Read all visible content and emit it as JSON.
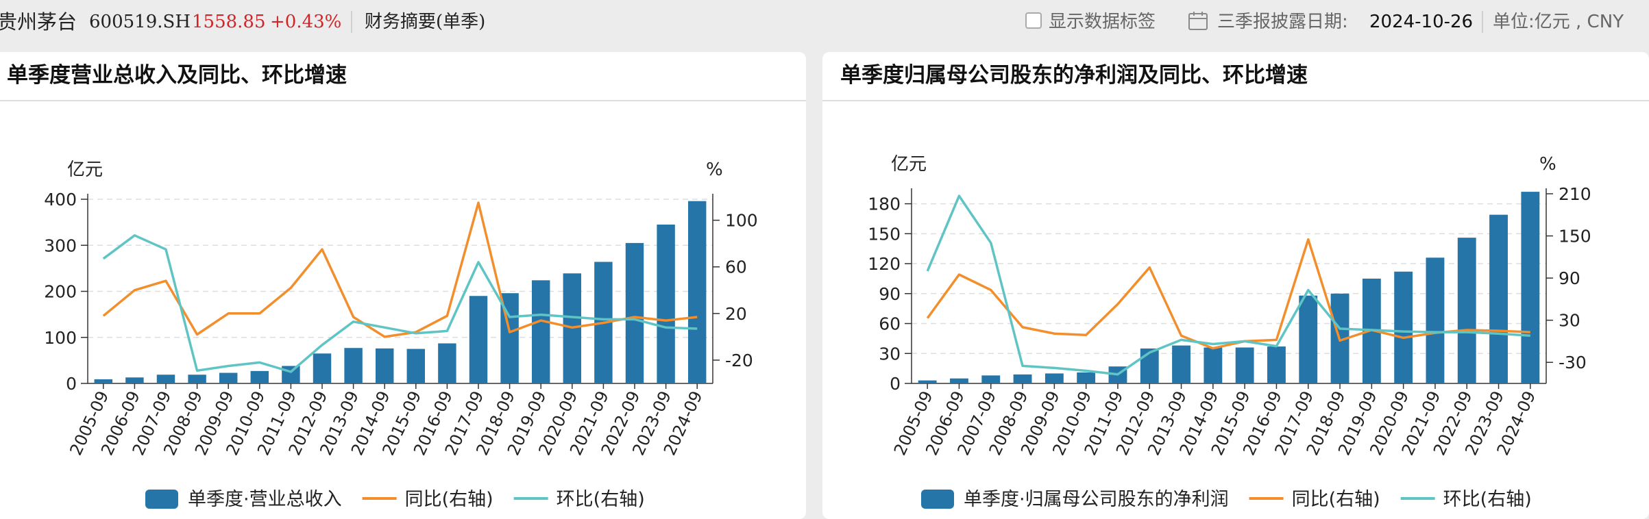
{
  "header": {
    "company": "贵州茅台",
    "code": "600519.SH",
    "price": "1558.85",
    "change": "+0.43%",
    "report_type": "财务摘要(单季)",
    "show_labels": "显示数据标签",
    "disclosure_label": "三季报披露日期:",
    "disclosure_date": "2024-10-26",
    "unit": "单位:亿元 , CNY"
  },
  "colors": {
    "bar": "#2675a8",
    "yoy": "#f28e2b",
    "qoq": "#5fc4c4",
    "price_red": "#d0262a"
  },
  "chart_data": [
    {
      "type": "bar",
      "title": "单季度营业总收入及同比、环比增速",
      "categories": [
        "2005-09",
        "2006-09",
        "2007-09",
        "2008-09",
        "2009-09",
        "2010-09",
        "2011-09",
        "2012-09",
        "2013-09",
        "2014-09",
        "2015-09",
        "2016-09",
        "2017-09",
        "2018-09",
        "2019-09",
        "2020-09",
        "2021-09",
        "2022-09",
        "2023-09",
        "2024-09"
      ],
      "left_unit": "亿元",
      "right_unit": "%",
      "left_ticks": [
        0,
        100,
        200,
        300,
        400
      ],
      "right_ticks": [
        -20,
        20,
        60,
        100
      ],
      "ylim_left": [
        0,
        400
      ],
      "ylim_right": [
        -40,
        118
      ],
      "series": [
        {
          "name": "单季度·营业总收入",
          "axis": "left",
          "type": "bar",
          "values": [
            9,
            13,
            19,
            19,
            23,
            27,
            38,
            65,
            77,
            76,
            75,
            87,
            190,
            196,
            224,
            239,
            264,
            305,
            345,
            396
          ]
        },
        {
          "name": "同比(右轴)",
          "axis": "right",
          "type": "line",
          "values": [
            18,
            40,
            48,
            2,
            20,
            20,
            42,
            75,
            17,
            0,
            4,
            18,
            115,
            4,
            14,
            8,
            12,
            17,
            14,
            17
          ]
        },
        {
          "name": "环比(右轴)",
          "axis": "right",
          "type": "line",
          "values": [
            67,
            87,
            75,
            -29,
            -25,
            -22,
            -30,
            -7,
            13,
            8,
            3,
            5,
            64,
            17,
            19,
            17,
            15,
            15,
            8,
            7
          ]
        }
      ]
    },
    {
      "type": "bar",
      "title": "单季度归属母公司股东的净利润及同比、环比增速",
      "categories": [
        "2005-09",
        "2006-09",
        "2007-09",
        "2008-09",
        "2009-09",
        "2010-09",
        "2011-09",
        "2012-09",
        "2013-09",
        "2014-09",
        "2015-09",
        "2016-09",
        "2017-09",
        "2018-09",
        "2019-09",
        "2020-09",
        "2021-09",
        "2022-09",
        "2023-09",
        "2024-09"
      ],
      "left_unit": "亿元",
      "right_unit": "%",
      "left_ticks": [
        0,
        30,
        60,
        90,
        120,
        150,
        180
      ],
      "right_ticks": [
        -30,
        30,
        90,
        150,
        210
      ],
      "ylim_left": [
        0,
        190
      ],
      "ylim_right": [
        -60,
        210
      ],
      "series": [
        {
          "name": "单季度·归属母公司股东的净利润",
          "axis": "left",
          "type": "bar",
          "values": [
            3,
            5,
            8,
            9,
            10,
            11,
            17,
            35,
            38,
            36,
            36,
            37,
            88,
            90,
            105,
            112,
            126,
            146,
            169,
            192
          ]
        },
        {
          "name": "同比(右轴)",
          "axis": "right",
          "type": "line",
          "values": [
            33,
            95,
            73,
            20,
            11,
            9,
            53,
            105,
            8,
            -10,
            0,
            2,
            145,
            1,
            16,
            5,
            12,
            16,
            15,
            13
          ]
        },
        {
          "name": "环比(右轴)",
          "axis": "right",
          "type": "line",
          "values": [
            100,
            207,
            140,
            -35,
            -38,
            -42,
            -47,
            -16,
            2,
            -4,
            0,
            -7,
            73,
            18,
            16,
            14,
            13,
            13,
            11,
            8
          ]
        }
      ]
    }
  ]
}
